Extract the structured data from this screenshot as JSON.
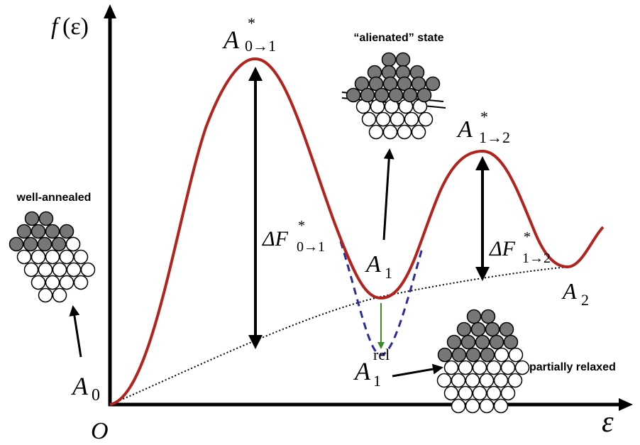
{
  "axes": {
    "y_label": {
      "base": "f",
      "rest": "(ε)"
    },
    "origin": "O",
    "x_label": "ε"
  },
  "labels": {
    "peak1": {
      "base": "A",
      "sup": "*",
      "sub": "0→1"
    },
    "peak2": {
      "base": "A",
      "sup": "*",
      "sub": "1→2"
    },
    "barrier1": {
      "base": "ΔF",
      "sup": "*",
      "sub": "0→1"
    },
    "barrier2": {
      "base": "ΔF",
      "sup": "*",
      "sub": "1→2"
    },
    "state1": {
      "base": "A",
      "sub": "1"
    },
    "state2": {
      "base": "A",
      "sub": "2"
    },
    "state0": {
      "base": "A",
      "sub": "0"
    },
    "relaxed": {
      "base": "A",
      "sup": "rel",
      "sub": "1"
    }
  },
  "captions": {
    "alienated": "“alienated” state",
    "well_annealed": "well-annealed",
    "partially_relaxed": "partially relaxed"
  }
}
